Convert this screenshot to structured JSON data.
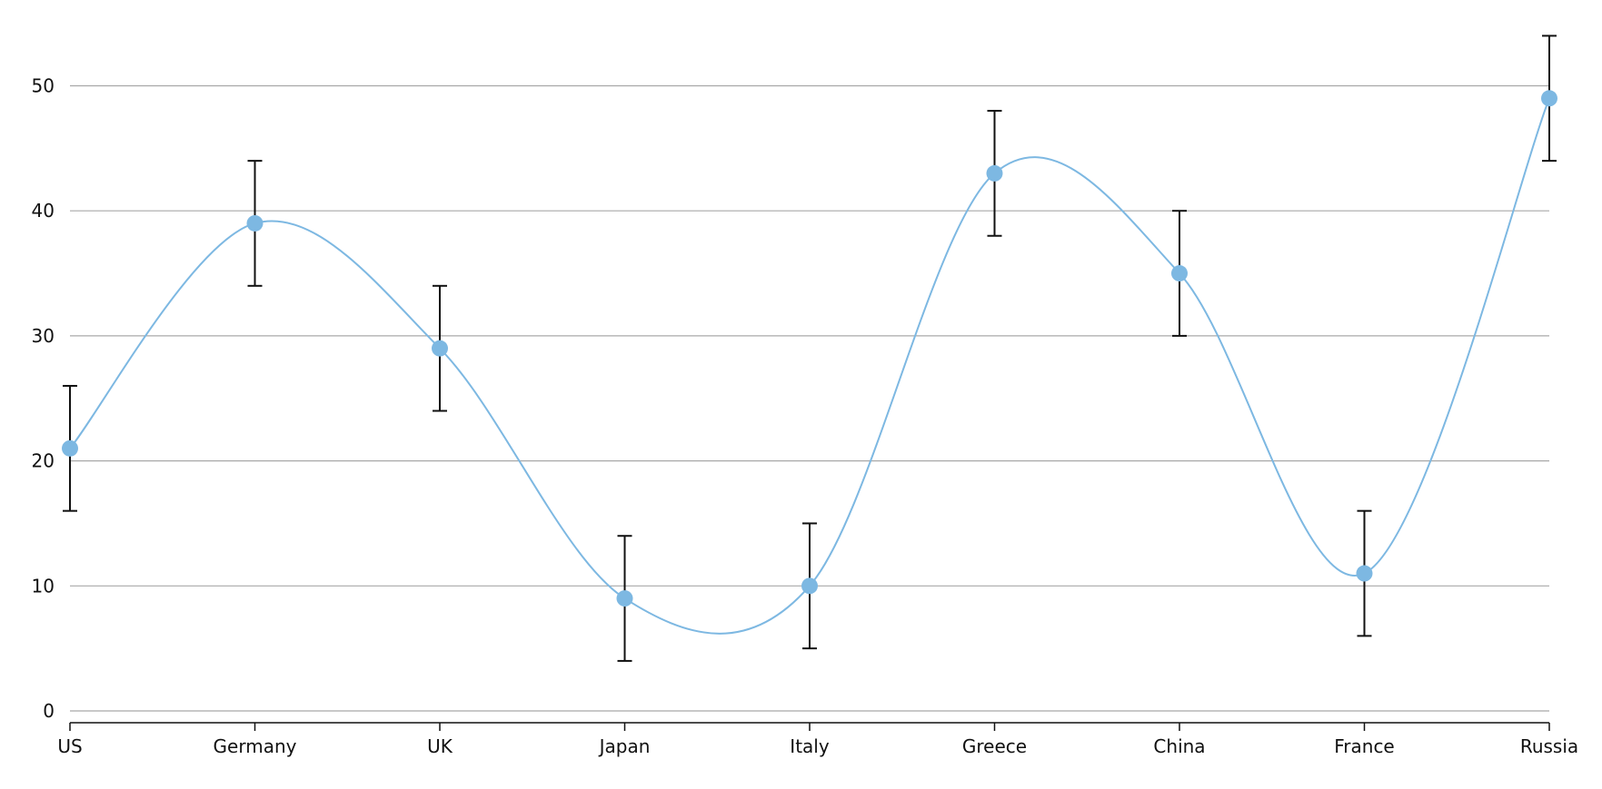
{
  "chart_data": {
    "type": "line",
    "title": "",
    "xlabel": "",
    "ylabel": "",
    "categories": [
      "US",
      "Germany",
      "UK",
      "Japan",
      "Italy",
      "Greece",
      "China",
      "France",
      "Russia"
    ],
    "series": [
      {
        "values": [
          21,
          39,
          29,
          9,
          10,
          43,
          35,
          11,
          49
        ],
        "error_low": [
          16,
          34,
          24,
          4,
          5,
          38,
          30,
          6,
          44
        ],
        "error_high": [
          26,
          44,
          34,
          14,
          15,
          48,
          40,
          16,
          54
        ],
        "color": "#7db8e2"
      }
    ],
    "ylim": [
      0,
      55
    ],
    "y_ticks": [
      0,
      10,
      20,
      30,
      40,
      50
    ],
    "grid": true,
    "legend": "none",
    "curve": "smooth",
    "colors": {
      "line": "#7db8e2",
      "marker": "#7db8e2",
      "error_bar": "#111111",
      "grid": "#a8a8a8",
      "axis": "#111111"
    }
  }
}
